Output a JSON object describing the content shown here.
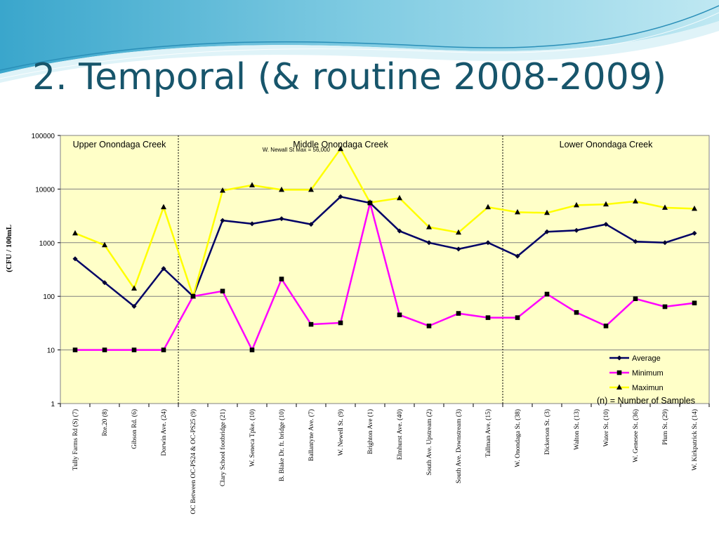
{
  "slide": {
    "title": "2. Temporal (& routine 2008-2009)"
  },
  "colors": {
    "title": "#17556b",
    "plot_bg": "#ffffc8",
    "average": "#000066",
    "minimum": "#ff00ff",
    "maximum": "#ffff00"
  },
  "chart_data": {
    "type": "line",
    "y_scale": "log",
    "ylim": [
      1,
      100000
    ],
    "y_ticks": [
      1,
      10,
      100,
      1000,
      10000,
      100000
    ],
    "y_tick_labels": [
      "1",
      "10",
      "100",
      "1000",
      "10000",
      "100000"
    ],
    "ylabel": "(CFU / 100mL",
    "xlabel": "",
    "grid": true,
    "legend_position": "bottom-right",
    "categories": [
      "Tully Farms Rd (S) (7)",
      "Rte.20 (8)",
      "Gibson Rd. (6)",
      "Dorwin Ave. (24)",
      "OC Between OC-PS24 & OC-PS25 (9)",
      "Clary School footbridge (21)",
      "W. Seneca Tpke. (10)",
      "B. Blake Dr. ft. bridge (10)",
      "Ballantyne Ave. (7)",
      "W. Newell St. (9)",
      "Brighton Ave (1)",
      "Elmhurst Ave. (40)",
      "South Ave. Upstream (2)",
      "South Ave. Downstream (3)",
      "Tallman Ave. (15)",
      "W. Onondaga St. (38)",
      "Dickerson St. (3)",
      "Walton St. (13)",
      "Water St. (10)",
      "W. Genesee St. (36)",
      "Plum St. (29)",
      "W. Kirkpatrick St. (14)"
    ],
    "series": [
      {
        "name": "Average",
        "marker": "diamond",
        "values": [
          500,
          180,
          65,
          330,
          100,
          2600,
          2250,
          2800,
          2200,
          7200,
          5500,
          1650,
          1000,
          760,
          1000,
          560,
          1600,
          1700,
          2200,
          1050,
          1000,
          1500
        ]
      },
      {
        "name": "Minimum",
        "marker": "square",
        "values": [
          10,
          10,
          10,
          10,
          100,
          125,
          10,
          210,
          30,
          32,
          5500,
          45,
          28,
          48,
          40,
          40,
          110,
          50,
          28,
          90,
          64,
          75
        ]
      },
      {
        "name": "Maximun",
        "marker": "triangle",
        "values": [
          1500,
          900,
          140,
          4600,
          100,
          9400,
          11800,
          9700,
          9700,
          56000,
          5600,
          6800,
          1950,
          1550,
          4600,
          3700,
          3600,
          5000,
          5200,
          5900,
          4500,
          4300
        ]
      }
    ],
    "regions": [
      {
        "label": "Upper Onondaga Creek",
        "start_index": 0,
        "end_index": 3
      },
      {
        "label": "Middle Onondaga Creek",
        "start_index": 4,
        "end_index": 14
      },
      {
        "label": "Lower Onondaga Creek",
        "start_index": 15,
        "end_index": 21
      }
    ],
    "annotations": [
      {
        "text": "W. Newall St Max = 56,000"
      },
      {
        "text": "(n) = Number of Samples"
      }
    ]
  }
}
